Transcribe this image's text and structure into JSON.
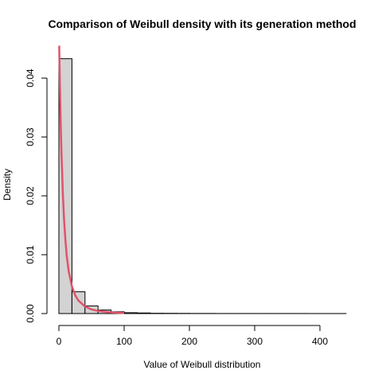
{
  "chart_data": {
    "type": "histogram",
    "title": "Comparison of Weibull density with its generation method",
    "xlabel": "Value of Weibull distribution",
    "ylabel": "Density",
    "xlim": [
      0,
      440
    ],
    "ylim": [
      0,
      0.045
    ],
    "x_ticks": [
      0,
      100,
      200,
      300,
      400
    ],
    "x_tick_labels": [
      "0",
      "100",
      "200",
      "300",
      "400"
    ],
    "y_ticks": [
      0,
      0.01,
      0.02,
      0.03,
      0.04
    ],
    "y_tick_labels": [
      "0.00",
      "0.01",
      "0.02",
      "0.03",
      "0.04"
    ],
    "bin_width": 20,
    "bins": [
      {
        "start": 0,
        "end": 20,
        "density": 0.0433
      },
      {
        "start": 20,
        "end": 40,
        "density": 0.0037
      },
      {
        "start": 40,
        "end": 60,
        "density": 0.0013
      },
      {
        "start": 60,
        "end": 80,
        "density": 0.0006
      },
      {
        "start": 80,
        "end": 100,
        "density": 0.0003
      },
      {
        "start": 100,
        "end": 120,
        "density": 0.00015
      },
      {
        "start": 120,
        "end": 140,
        "density": 0.0001
      },
      {
        "start": 140,
        "end": 160,
        "density": 5e-05
      },
      {
        "start": 160,
        "end": 180,
        "density": 4e-05
      },
      {
        "start": 180,
        "end": 200,
        "density": 3e-05
      },
      {
        "start": 200,
        "end": 220,
        "density": 2e-05
      },
      {
        "start": 220,
        "end": 240,
        "density": 2e-05
      },
      {
        "start": 240,
        "end": 260,
        "density": 1e-05
      },
      {
        "start": 260,
        "end": 280,
        "density": 1e-05
      },
      {
        "start": 280,
        "end": 300,
        "density": 1e-05
      },
      {
        "start": 300,
        "end": 320,
        "density": 1e-05
      },
      {
        "start": 320,
        "end": 340,
        "density": 1e-05
      },
      {
        "start": 340,
        "end": 360,
        "density": 1e-05
      },
      {
        "start": 360,
        "end": 380,
        "density": 1e-05
      },
      {
        "start": 380,
        "end": 400,
        "density": 5e-06
      },
      {
        "start": 400,
        "end": 420,
        "density": 5e-06
      },
      {
        "start": 420,
        "end": 440,
        "density": 5e-06
      }
    ],
    "density_curve": {
      "color": "#DF536B",
      "points": [
        {
          "x": 0.5,
          "y": 0.0455
        },
        {
          "x": 1,
          "y": 0.042
        },
        {
          "x": 2,
          "y": 0.036
        },
        {
          "x": 3,
          "y": 0.031
        },
        {
          "x": 4,
          "y": 0.027
        },
        {
          "x": 5,
          "y": 0.024
        },
        {
          "x": 6,
          "y": 0.0205
        },
        {
          "x": 8,
          "y": 0.0158
        },
        {
          "x": 10,
          "y": 0.0125
        },
        {
          "x": 12,
          "y": 0.0098
        },
        {
          "x": 15,
          "y": 0.0072
        },
        {
          "x": 20,
          "y": 0.0046
        },
        {
          "x": 25,
          "y": 0.0031
        },
        {
          "x": 30,
          "y": 0.0022
        },
        {
          "x": 40,
          "y": 0.0012
        },
        {
          "x": 50,
          "y": 0.0007
        },
        {
          "x": 60,
          "y": 0.00045
        },
        {
          "x": 70,
          "y": 0.0003
        },
        {
          "x": 80,
          "y": 0.0002
        },
        {
          "x": 90,
          "y": 0.00014
        },
        {
          "x": 100,
          "y": 0.0001
        }
      ]
    },
    "bar_fill": "#D3D3D3",
    "bar_stroke": "#000000"
  }
}
